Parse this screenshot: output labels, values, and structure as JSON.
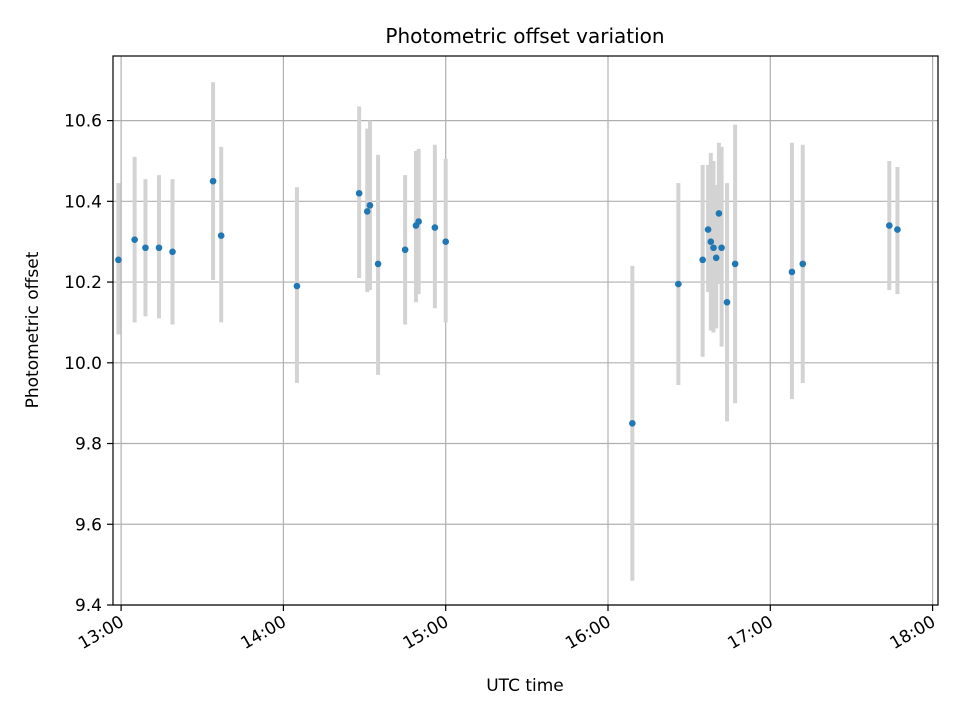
{
  "chart_data": {
    "type": "scatter",
    "title": "Photometric offset variation",
    "xlabel": "UTC time",
    "ylabel": "Photometric offset",
    "x_ticks": [
      "13:00",
      "14:00",
      "15:00",
      "16:00",
      "17:00",
      "18:00"
    ],
    "y_ticks": [
      "9.4",
      "9.6",
      "9.8",
      "10.0",
      "10.2",
      "10.4",
      "10.6"
    ],
    "xlim": [
      "12:57",
      "18:02"
    ],
    "ylim": [
      9.4,
      10.76
    ],
    "grid": true,
    "point_color": "#1f77b4",
    "errorbar_color": "#d3d3d3",
    "points": [
      {
        "x": "12:59",
        "y": 10.255,
        "ylow": 10.07,
        "yhigh": 10.445
      },
      {
        "x": "13:05",
        "y": 10.305,
        "ylow": 10.1,
        "yhigh": 10.51
      },
      {
        "x": "13:09",
        "y": 10.285,
        "ylow": 10.115,
        "yhigh": 10.455
      },
      {
        "x": "13:14",
        "y": 10.285,
        "ylow": 10.11,
        "yhigh": 10.465
      },
      {
        "x": "13:19",
        "y": 10.275,
        "ylow": 10.095,
        "yhigh": 10.455
      },
      {
        "x": "13:34",
        "y": 10.45,
        "ylow": 10.205,
        "yhigh": 10.695
      },
      {
        "x": "13:37",
        "y": 10.315,
        "ylow": 10.1,
        "yhigh": 10.535
      },
      {
        "x": "14:05",
        "y": 10.19,
        "ylow": 9.95,
        "yhigh": 10.435
      },
      {
        "x": "14:28",
        "y": 10.42,
        "ylow": 10.21,
        "yhigh": 10.635
      },
      {
        "x": "14:31",
        "y": 10.375,
        "ylow": 10.175,
        "yhigh": 10.58
      },
      {
        "x": "14:32",
        "y": 10.39,
        "ylow": 10.18,
        "yhigh": 10.6
      },
      {
        "x": "14:35",
        "y": 10.245,
        "ylow": 9.97,
        "yhigh": 10.515
      },
      {
        "x": "14:45",
        "y": 10.28,
        "ylow": 10.095,
        "yhigh": 10.465
      },
      {
        "x": "14:49",
        "y": 10.34,
        "ylow": 10.15,
        "yhigh": 10.525
      },
      {
        "x": "14:50",
        "y": 10.35,
        "ylow": 10.17,
        "yhigh": 10.53
      },
      {
        "x": "14:56",
        "y": 10.335,
        "ylow": 10.135,
        "yhigh": 10.54
      },
      {
        "x": "15:00",
        "y": 10.3,
        "ylow": 10.1,
        "yhigh": 10.505
      },
      {
        "x": "16:09",
        "y": 9.85,
        "ylow": 9.46,
        "yhigh": 10.24
      },
      {
        "x": "16:26",
        "y": 10.195,
        "ylow": 9.945,
        "yhigh": 10.445
      },
      {
        "x": "16:35",
        "y": 10.255,
        "ylow": 10.015,
        "yhigh": 10.49
      },
      {
        "x": "16:37",
        "y": 10.33,
        "ylow": 10.175,
        "yhigh": 10.49
      },
      {
        "x": "16:38",
        "y": 10.3,
        "ylow": 10.08,
        "yhigh": 10.52
      },
      {
        "x": "16:39",
        "y": 10.285,
        "ylow": 10.075,
        "yhigh": 10.5
      },
      {
        "x": "16:40",
        "y": 10.26,
        "ylow": 10.085,
        "yhigh": 10.44
      },
      {
        "x": "16:41",
        "y": 10.37,
        "ylow": 10.195,
        "yhigh": 10.545
      },
      {
        "x": "16:42",
        "y": 10.285,
        "ylow": 10.04,
        "yhigh": 10.535
      },
      {
        "x": "16:44",
        "y": 10.15,
        "ylow": 9.855,
        "yhigh": 10.445
      },
      {
        "x": "16:47",
        "y": 10.245,
        "ylow": 9.9,
        "yhigh": 10.59
      },
      {
        "x": "17:08",
        "y": 10.225,
        "ylow": 9.91,
        "yhigh": 10.545
      },
      {
        "x": "17:12",
        "y": 10.245,
        "ylow": 9.95,
        "yhigh": 10.54
      },
      {
        "x": "17:44",
        "y": 10.34,
        "ylow": 10.18,
        "yhigh": 10.5
      },
      {
        "x": "17:47",
        "y": 10.33,
        "ylow": 10.17,
        "yhigh": 10.485
      }
    ]
  }
}
